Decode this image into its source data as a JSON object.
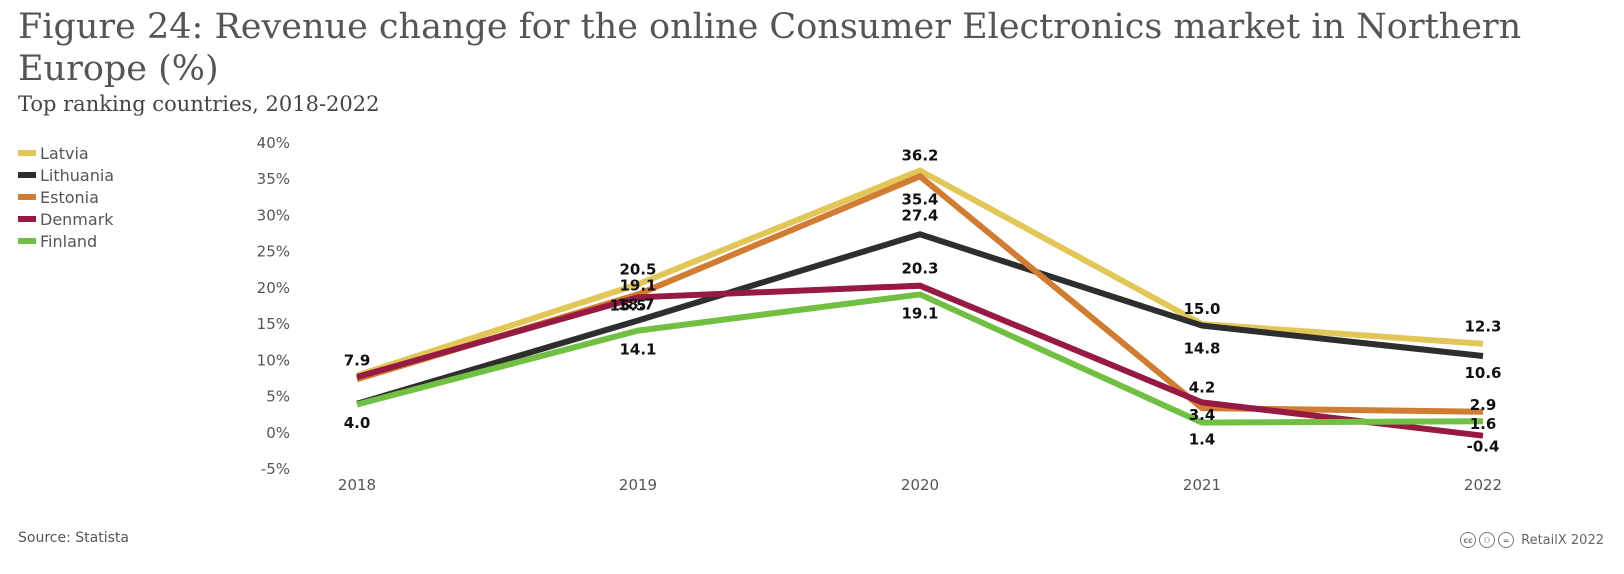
{
  "header": {
    "title": "Figure 24: Revenue change for the online Consumer Electronics market in Northern Europe (%)",
    "subtitle": "Top ranking countries, 2018-2022"
  },
  "footer": {
    "source": "Source: Statista",
    "credit": "RetailX 2022",
    "icons": [
      "creative-commons-icon",
      "attribution-icon",
      "no-derivatives-icon"
    ]
  },
  "chart_data": {
    "type": "line",
    "categories": [
      "2018",
      "2019",
      "2020",
      "2021",
      "2022"
    ],
    "ylim": [
      -5,
      40
    ],
    "yticks": [
      -5,
      0,
      5,
      10,
      15,
      20,
      25,
      30,
      35,
      40
    ],
    "ytick_labels": [
      "-5%",
      "0%",
      "5%",
      "10%",
      "15%",
      "20%",
      "25%",
      "30%",
      "35%",
      "40%"
    ],
    "grid": false,
    "legend_position": "top-left",
    "series": [
      {
        "name": "Latvia",
        "color": "#e2c758",
        "values": [
          7.9,
          20.5,
          36.2,
          15.0,
          12.3
        ],
        "labels": [
          "7.9",
          "20.5",
          "36.2",
          "15.0",
          "12.3"
        ]
      },
      {
        "name": "Lithuania",
        "color": "#2e2e2e",
        "values": [
          4.0,
          15.5,
          27.4,
          14.8,
          10.6
        ],
        "labels": [
          "4.0",
          "15.5",
          "27.4",
          "14.8",
          "10.6"
        ]
      },
      {
        "name": "Estonia",
        "color": "#d17c33",
        "values": [
          7.4,
          19.1,
          35.4,
          3.4,
          2.9
        ],
        "labels": [
          "",
          "19.1",
          "35.4",
          "3.4",
          "2.9"
        ]
      },
      {
        "name": "Denmark",
        "color": "#971a43",
        "values": [
          7.7,
          18.7,
          20.3,
          4.2,
          -0.4
        ],
        "labels": [
          "",
          "18.7",
          "20.3",
          "4.2",
          "-0.4"
        ]
      },
      {
        "name": "Finland",
        "color": "#72c043",
        "values": [
          3.9,
          14.1,
          19.1,
          1.4,
          1.6
        ],
        "labels": [
          "",
          "14.1",
          "19.1",
          "1.4",
          "1.6"
        ]
      }
    ]
  }
}
